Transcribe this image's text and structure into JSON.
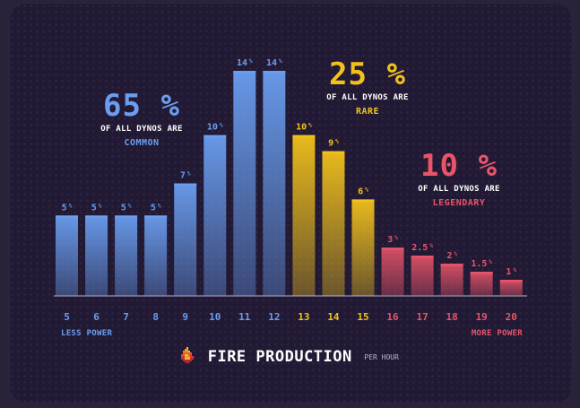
{
  "chart_data": {
    "type": "bar",
    "categories": [
      "5",
      "6",
      "7",
      "8",
      "9",
      "10",
      "11",
      "12",
      "13",
      "14",
      "15",
      "16",
      "17",
      "18",
      "19",
      "20"
    ],
    "values": [
      5,
      5,
      5,
      5,
      7,
      10,
      14,
      14,
      10,
      9,
      6,
      3,
      2.5,
      2,
      1.5,
      1
    ],
    "value_labels": [
      "5",
      "5",
      "5",
      "5",
      "7",
      "10",
      "14",
      "14",
      "10",
      "9",
      "6",
      "3",
      "2.5",
      "2",
      "1.5",
      "1"
    ],
    "value_unit": "%",
    "tiers": [
      "common",
      "common",
      "common",
      "common",
      "common",
      "common",
      "common",
      "common",
      "rare",
      "rare",
      "rare",
      "legendary",
      "legendary",
      "legendary",
      "legendary",
      "legendary"
    ],
    "ylim": [
      0,
      14
    ],
    "grid": false,
    "colors": {
      "common": "#6a9ef0",
      "rare": "#f2c21b",
      "legendary": "#e8546a",
      "tick_common": "#6a9ef0",
      "tick_rare": "#f2c21b",
      "tick_legendary": "#e8546a"
    }
  },
  "callouts": {
    "common": {
      "percent": "65 %",
      "text": "OF ALL DYNOS ARE",
      "tier": "COMMON"
    },
    "rare": {
      "percent": "25 %",
      "text": "OF ALL DYNOS ARE",
      "tier": "RARE"
    },
    "legendary": {
      "percent": "10 %",
      "text": "OF ALL DYNOS ARE",
      "tier": "LEGENDARY"
    }
  },
  "axis": {
    "left_label": "LESS POWER",
    "right_label": "MORE POWER"
  },
  "footer": {
    "title": "FIRE PRODUCTION",
    "unit": "PER HOUR",
    "icon": "fire-icon"
  }
}
